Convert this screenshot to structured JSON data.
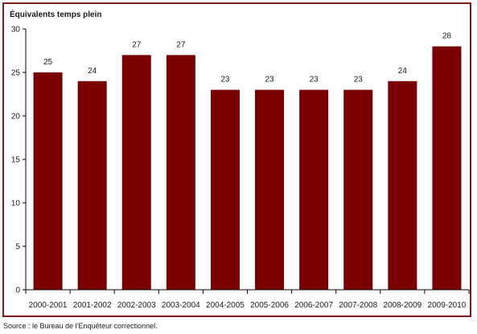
{
  "chart_data": {
    "type": "bar",
    "title": "",
    "ylabel": "Équivalents temps plein",
    "xlabel": "",
    "categories": [
      "2000-2001",
      "2001-2002",
      "2002-2003",
      "2003-2004",
      "2004-2005",
      "2005-2006",
      "2006-2007",
      "2007-2008",
      "2008-2009",
      "2009-2010"
    ],
    "values": [
      25,
      24,
      27,
      27,
      23,
      23,
      23,
      23,
      24,
      28
    ],
    "ylim": [
      0,
      30
    ],
    "yticks": [
      0,
      5,
      10,
      15,
      20,
      25,
      30
    ],
    "grid": false,
    "legend": "none",
    "bar_color": "#7a0000",
    "frame_color": "#7a1a1a"
  },
  "source": "Source : le Bureau de l’Enquêteur correctionnel."
}
